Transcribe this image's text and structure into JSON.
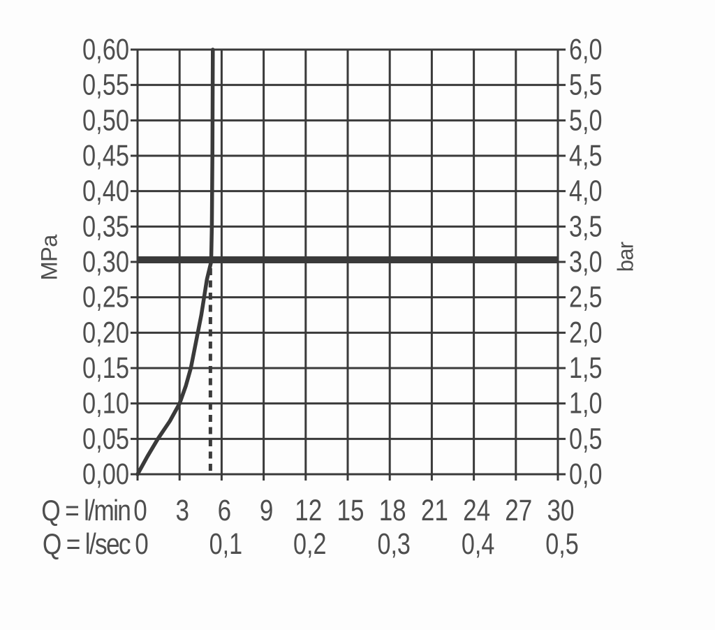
{
  "chart_data": {
    "type": "line",
    "title": "",
    "y_axis_left": {
      "unit": "MPa",
      "min": 0,
      "max": 0.6,
      "step": 0.05,
      "tick_labels": [
        "0,00",
        "0,05",
        "0,10",
        "0,15",
        "0,20",
        "0,25",
        "0,30",
        "0,35",
        "0,40",
        "0,45",
        "0,50",
        "0,55",
        "0,60"
      ]
    },
    "y_axis_right": {
      "unit": "bar",
      "min": 0,
      "max": 6.0,
      "step": 0.5,
      "tick_labels": [
        "0,0",
        "0,5",
        "1,0",
        "1,5",
        "2,0",
        "2,5",
        "3,0",
        "3,5",
        "4,0",
        "4,5",
        "5,0",
        "5,5",
        "6,0"
      ]
    },
    "x_axis_primary": {
      "unit_label": "Q = l/min",
      "min": 0,
      "max": 30,
      "step": 3,
      "tick_labels": [
        "0",
        "3",
        "6",
        "9",
        "12",
        "15",
        "18",
        "21",
        "24",
        "27",
        "30"
      ]
    },
    "x_axis_secondary": {
      "unit_label": "Q = l/sec",
      "tick_labels": [
        "0",
        "0,1",
        "0,2",
        "0,3",
        "0,4",
        "0,5"
      ],
      "tick_positions_lmin": [
        0,
        6,
        12,
        18,
        24,
        30
      ]
    },
    "series": [
      {
        "name": "flow-rate-curve",
        "points_lmin_mpa": [
          [
            0,
            0
          ],
          [
            0.7,
            0.025
          ],
          [
            1.45,
            0.05
          ],
          [
            2.3,
            0.075
          ],
          [
            3.0,
            0.1
          ],
          [
            3.45,
            0.125
          ],
          [
            3.8,
            0.15
          ],
          [
            4.05,
            0.175
          ],
          [
            4.3,
            0.2
          ],
          [
            4.55,
            0.225
          ],
          [
            4.75,
            0.25
          ],
          [
            4.95,
            0.275
          ],
          [
            5.1,
            0.2875
          ],
          [
            5.25,
            0.3
          ],
          [
            5.3,
            0.35
          ],
          [
            5.34,
            0.45
          ],
          [
            5.37,
            0.6
          ]
        ]
      }
    ],
    "reference_line": {
      "orientation": "horizontal",
      "value_mpa": 0.3,
      "value_bar": 3.0
    },
    "dashed_guide": {
      "orientation": "vertical",
      "value_lmin": 5.2,
      "from_mpa": 0,
      "to_mpa": 0.3
    },
    "grid": true,
    "colors": {
      "line": "#3a3a3a",
      "text": "#4e4e4e",
      "background": "#fdfdfd"
    }
  }
}
